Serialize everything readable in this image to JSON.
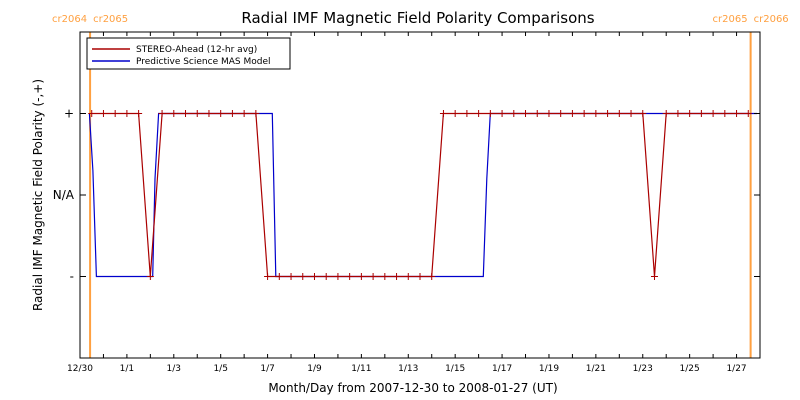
{
  "chart_data": {
    "type": "line",
    "title": "Radial IMF Magnetic Field Polarity Comparisons",
    "xlabel": "Month/Day from 2007-12-30 to 2008-01-27 (UT)",
    "ylabel": "Radial IMF Magnetic Field Polarity (-,+)",
    "x_unit": "days from 2007-12-30 00:00 UT",
    "xlim": [
      0,
      29
    ],
    "x_tick_labels": [
      {
        "x": 0,
        "label": "12/30"
      },
      {
        "x": 2,
        "label": "1/1"
      },
      {
        "x": 4,
        "label": "1/3"
      },
      {
        "x": 6,
        "label": "1/5"
      },
      {
        "x": 8,
        "label": "1/7"
      },
      {
        "x": 10,
        "label": "1/9"
      },
      {
        "x": 12,
        "label": "1/11"
      },
      {
        "x": 14,
        "label": "1/13"
      },
      {
        "x": 16,
        "label": "1/15"
      },
      {
        "x": 18,
        "label": "1/17"
      },
      {
        "x": 20,
        "label": "1/19"
      },
      {
        "x": 22,
        "label": "1/21"
      },
      {
        "x": 24,
        "label": "1/23"
      },
      {
        "x": 26,
        "label": "1/25"
      },
      {
        "x": 28,
        "label": "1/27"
      }
    ],
    "ylim": [
      -2,
      2
    ],
    "y_tick_labels": [
      {
        "y": 1,
        "label": "+"
      },
      {
        "y": 0,
        "label": "N/A"
      },
      {
        "y": -1,
        "label": "-"
      }
    ],
    "grid": false,
    "legend_position": "top-left",
    "series": [
      {
        "name": "STEREO-Ahead (12-hr avg)",
        "color": "#aa0000",
        "marker": "plus",
        "x": [
          0.5,
          1.0,
          1.5,
          2.0,
          2.5,
          3.0,
          3.5,
          4.0,
          4.5,
          5.0,
          5.5,
          6.0,
          6.5,
          7.0,
          7.5,
          8.0,
          8.5,
          9.0,
          9.5,
          10.0,
          10.5,
          11.0,
          11.5,
          12.0,
          12.5,
          13.0,
          13.5,
          14.0,
          14.5,
          15.0,
          15.5,
          16.0,
          16.5,
          17.0,
          17.5,
          18.0,
          18.5,
          19.0,
          19.5,
          20.0,
          20.5,
          21.0,
          21.5,
          22.0,
          22.5,
          23.0,
          23.5,
          24.0,
          24.5,
          25.0,
          25.5,
          26.0,
          26.5,
          27.0,
          27.5,
          28.0,
          28.5
        ],
        "y": [
          1,
          1,
          1,
          1,
          1,
          -1,
          1,
          1,
          1,
          1,
          1,
          1,
          1,
          1,
          1,
          -1,
          -1,
          -1,
          -1,
          -1,
          -1,
          -1,
          -1,
          -1,
          -1,
          -1,
          -1,
          -1,
          -1,
          -1,
          1,
          1,
          1,
          1,
          1,
          1,
          1,
          1,
          1,
          1,
          1,
          1,
          1,
          1,
          1,
          1,
          1,
          1,
          -1,
          1,
          1,
          1,
          1,
          1,
          1,
          1,
          1
        ]
      },
      {
        "name": "Predictive Science MAS Model",
        "color": "#0000cc",
        "marker": "none",
        "x": [
          0.4,
          0.55,
          0.7,
          3.1,
          3.2,
          3.35,
          3.5,
          8.2,
          8.35,
          8.5,
          17.2,
          17.35,
          17.5,
          30.0
        ],
        "y": [
          1,
          0.3,
          -1,
          -1,
          0.2,
          1,
          1,
          1,
          -1,
          -1,
          -1,
          0.2,
          1,
          1
        ]
      }
    ],
    "annotations": [
      {
        "x": 0.43,
        "labels": [
          "cr2064",
          "cr2065"
        ],
        "color": "#ffa040"
      },
      {
        "x": 28.6,
        "labels": [
          "cr2065",
          "cr2066"
        ],
        "color": "#ffa040"
      }
    ]
  }
}
